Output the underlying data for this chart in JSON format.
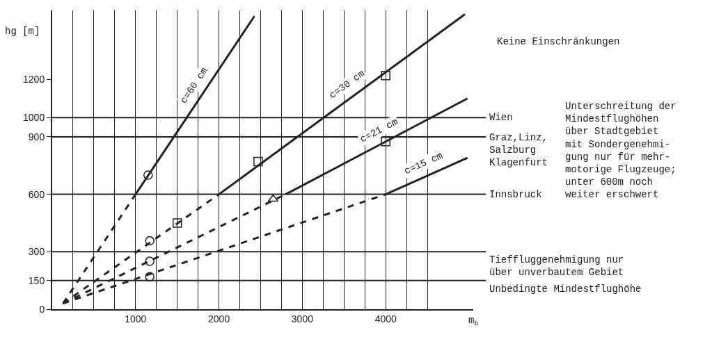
{
  "chart_data": {
    "type": "line",
    "xlabel": "m$_{b}$",
    "ylabel": "hg [m]",
    "xlim": [
      0,
      5050
    ],
    "ylim": [
      0,
      1560
    ],
    "xticks": [
      {
        "value": 250,
        "label": null
      },
      {
        "value": 500,
        "label": null
      },
      {
        "value": 750,
        "label": null
      },
      1000,
      {
        "value": 1250,
        "label": null
      },
      {
        "value": 1500,
        "label": null
      },
      {
        "value": 1750,
        "label": null
      },
      2000,
      {
        "value": 2250,
        "label": null
      },
      {
        "value": 2500,
        "label": null
      },
      {
        "value": 2750,
        "label": null
      },
      3000,
      {
        "value": 3250,
        "label": null
      },
      {
        "value": 3500,
        "label": null
      },
      {
        "value": 3750,
        "label": null
      },
      4000,
      {
        "value": 4250,
        "label": null
      },
      {
        "value": 4500,
        "label": null
      }
    ],
    "yticks": [
      0,
      150,
      300,
      600,
      900,
      1000,
      1200
    ],
    "grid": "x",
    "marker": "none",
    "series": [
      {
        "color": "#222222",
        "line_style": "dashed",
        "x": [
          130,
          1000
        ],
        "values": [
          30,
          600
        ]
      },
      {
        "name": "c=60 cm",
        "color": "#222222",
        "line_style": "solid",
        "x": [
          1000,
          2425
        ],
        "values": [
          600,
          1530
        ]
      },
      {
        "color": "#222222",
        "line_style": "dashed",
        "x": [
          130,
          2000
        ],
        "values": [
          30,
          600
        ]
      },
      {
        "name": "c=30 cm",
        "color": "#222222",
        "line_style": "solid",
        "x": [
          2000,
          4950
        ],
        "values": [
          600,
          1540
        ]
      },
      {
        "color": "#222222",
        "line_style": "dashed",
        "x": [
          130,
          2800
        ],
        "values": [
          30,
          600
        ]
      },
      {
        "name": "c=21 cm",
        "color": "#222222",
        "line_style": "solid",
        "x": [
          2800,
          4980
        ],
        "values": [
          600,
          1100
        ]
      },
      {
        "color": "#222222",
        "line_style": "dashed",
        "x": [
          130,
          4000
        ],
        "values": [
          30,
          600
        ]
      },
      {
        "name": "c=15 cm",
        "color": "#222222",
        "line_style": "solid",
        "x": [
          4000,
          4980
        ],
        "values": [
          600,
          790
        ]
      },
      {
        "type": "scatter",
        "marker": "circle",
        "color": "#222222",
        "x": [
          1150,
          1170,
          1170,
          1170
        ],
        "values": [
          700,
          357,
          250,
          170
        ]
      },
      {
        "type": "scatter",
        "marker": "square",
        "color": "#222222",
        "x": [
          1500,
          2470,
          4000,
          4000
        ],
        "values": [
          450,
          771,
          1220,
          875
        ]
      },
      {
        "type": "scatter",
        "marker": "triangle",
        "color": "#222222",
        "x": [
          2650
        ],
        "values": [
          575
        ]
      }
    ],
    "ref_lines": [
      {
        "axis": "y",
        "value": 1000,
        "label": "Wien"
      },
      {
        "axis": "y",
        "value": 900,
        "label": "Graz,Linz,\nSalzburg\nKlagenfurt"
      },
      {
        "axis": "y",
        "value": 600,
        "label": "Innsbruck"
      },
      {
        "axis": "y",
        "value": 300,
        "label": "Tieffluggenehmigung nur\nüber unverbautem Gebiet"
      },
      {
        "axis": "y",
        "value": 150,
        "label": "Unbedingte Mindestflughöhe"
      }
    ],
    "annotations": [
      "Keine Einschränkungen",
      "Unterschreitung der\nMindestflughöhen\nüber Stadtgebiet\nmit Sondergenehmi-\ngung nur für mehr-\nmotorige Flugzeuge;\nunter 600m noch\nweiter erschwert"
    ]
  }
}
